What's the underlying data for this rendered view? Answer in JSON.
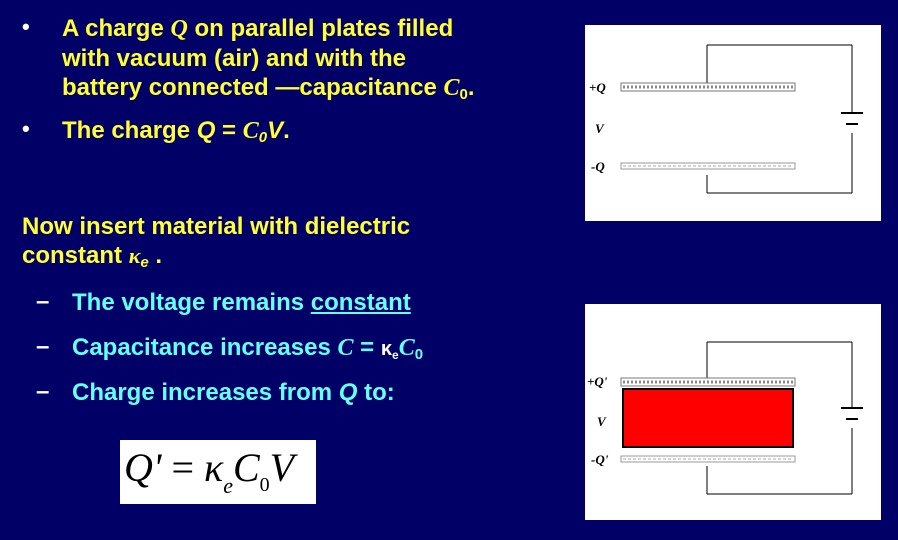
{
  "bullets": [
    {
      "dot": "•",
      "line1": "A charge ",
      "line1_var": "Q",
      "line1_rest": " on parallel plates filled",
      "line2": "with vacuum (air) and with the",
      "line3_a": "battery connected —capacitance ",
      "line3_var": "C",
      "line3_sub": "0",
      "line3_end": "."
    },
    {
      "dot": "•",
      "text_a": "The charge ",
      "q": "Q",
      "eq": " = ",
      "c": "C",
      "c_sub": "0",
      "v": "V",
      "end": "."
    }
  ],
  "insert": {
    "line1": "Now insert material with dielectric",
    "line2_a": "constant ",
    "kappa": "κ",
    "kappa_sub": "e",
    "line2_end": " ."
  },
  "sub_items": [
    {
      "dash": "–",
      "text": "The voltage remains ",
      "emph": "constant"
    },
    {
      "dash": "–",
      "text": "Capacitance increases ",
      "c": "C",
      "eq": " = ",
      "k": "κ",
      "k_sub": "e",
      "c0": "C",
      "c0_sub": "0"
    },
    {
      "dash": "–",
      "text": "Charge increases from ",
      "q": "Q",
      "to": " to:"
    }
  ],
  "formula": {
    "lhs": "Q'",
    "eq": " = ",
    "k": "κ",
    "k_sub": "e",
    "c": "C",
    "c_sub": "0",
    "v": "V"
  },
  "diagram_top": {
    "plus_label": "+Q",
    "v_label": "V",
    "minus_label": "-Q"
  },
  "diagram_bottom": {
    "plus_label": "+Q'",
    "v_label": "V",
    "minus_label": "-Q'",
    "dielectric_color": "#ff0000"
  },
  "colors": {
    "background": "#000066",
    "yellow": "#ffff33",
    "cyan": "#66ffff"
  }
}
